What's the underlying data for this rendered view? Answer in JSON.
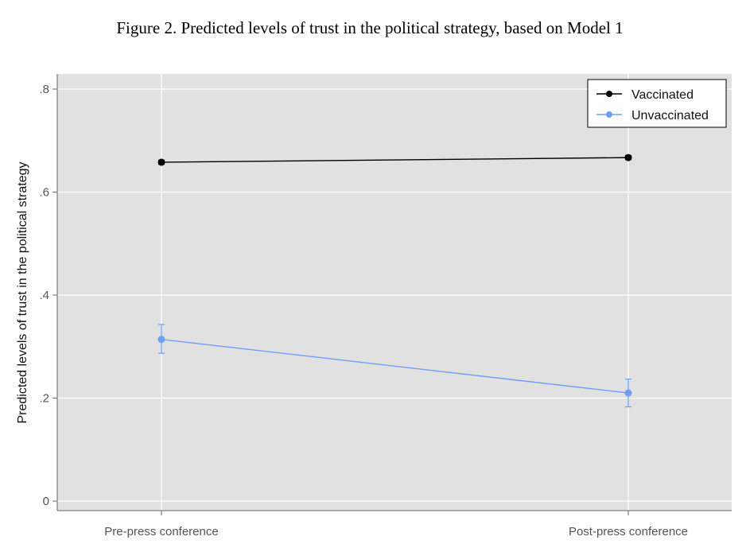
{
  "chart_data": {
    "type": "line",
    "title": "Figure 2. Predicted levels of trust in the political strategy, based on Model 1",
    "xlabel": "",
    "ylabel": "Predicted levels of trust in the political strategy",
    "categories": [
      "Pre-press conference",
      "Post-press conference"
    ],
    "ylim": [
      0,
      0.8
    ],
    "yticks": [
      0,
      0.2,
      0.4,
      0.6,
      0.8
    ],
    "ytick_labels": [
      "0",
      ".2",
      ".4",
      ".6",
      ".8"
    ],
    "grid": true,
    "legend_position": "top-right",
    "series": [
      {
        "name": "Vaccinated",
        "color": "#000000",
        "values": [
          0.658,
          0.667
        ],
        "ci_low": [
          0.654,
          0.663
        ],
        "ci_high": [
          0.662,
          0.671
        ]
      },
      {
        "name": "Unvaccinated",
        "color": "#6f9ef8",
        "values": [
          0.314,
          0.21
        ],
        "ci_low": [
          0.287,
          0.183
        ],
        "ci_high": [
          0.343,
          0.237
        ]
      }
    ]
  }
}
